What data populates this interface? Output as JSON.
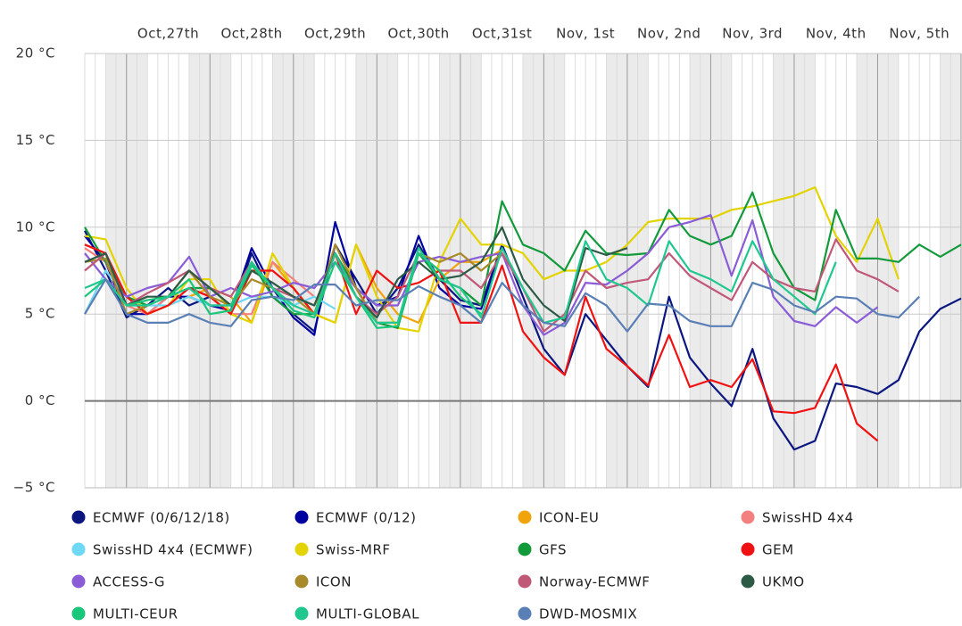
{
  "chart_data": {
    "type": "line",
    "categories": [
      null,
      null,
      null,
      null,
      "Oct,27th",
      null,
      null,
      null,
      "Oct,28th",
      null,
      null,
      null,
      "Oct,29th",
      null,
      null,
      null,
      "Oct,30th",
      null,
      null,
      null,
      "Oct,31st",
      null,
      null,
      null,
      "Nov, 1st",
      null,
      null,
      null,
      "Nov, 2nd",
      null,
      null,
      null,
      "Nov, 3rd",
      null,
      null,
      null,
      "Nov, 4th",
      null,
      null,
      null,
      "Nov, 5th",
      null,
      null
    ],
    "ylim": [
      -5,
      20
    ],
    "yticks": [
      {
        "value": -5,
        "label": "−5 °C"
      },
      {
        "value": 0,
        "label": "0 °C"
      },
      {
        "value": 5,
        "label": "5 °C"
      },
      {
        "value": 10,
        "label": "10 °C"
      },
      {
        "value": 15,
        "label": "15 °C"
      },
      {
        "value": 20,
        "label": "20 °C"
      }
    ],
    "grid": true,
    "series": [
      {
        "name": "ECMWF (0/6/12/18)",
        "color": "#0b1780",
        "values": [
          9.8,
          7.5,
          4.8,
          5.5,
          6.5,
          5.5,
          6,
          5,
          8.5,
          6,
          5,
          4,
          9,
          7,
          5,
          6.5,
          9,
          7,
          5.8,
          5.5,
          9,
          6,
          3,
          1.5,
          5,
          3.5,
          2,
          0.8,
          6,
          2.5,
          1,
          -0.3,
          3,
          -1,
          -2.8,
          -2.3,
          1,
          0.8,
          0.4,
          1.2,
          4,
          5.3,
          5.9
        ]
      },
      {
        "name": "ECMWF (0/12)",
        "color": "#0000a0",
        "values": [
          9.5,
          8,
          5,
          5,
          6,
          6,
          5.5,
          5.2,
          8.8,
          6.5,
          4.8,
          3.8,
          10.3,
          6.5,
          5.5,
          6,
          9.5,
          6.5,
          5.5,
          5.3,
          8.8,
          null,
          null,
          null,
          null,
          null,
          null,
          null,
          null,
          null,
          null,
          null,
          null,
          null,
          null,
          null,
          null,
          null,
          null,
          null,
          null,
          null,
          null
        ]
      },
      {
        "name": "ICON-EU",
        "color": "#f0a30a",
        "values": [
          9,
          8.5,
          6,
          5,
          5.5,
          6,
          6.5,
          6,
          4.5,
          8,
          6.5,
          5,
          4.5,
          9,
          6.5,
          5,
          4.5,
          7,
          8,
          8,
          8.7,
          null,
          null,
          null,
          null,
          null,
          null,
          null,
          null,
          null,
          null,
          null,
          null,
          null,
          null,
          null,
          null,
          null,
          null,
          null,
          null,
          null,
          null
        ]
      },
      {
        "name": "SwissHD 4x4",
        "color": "#f47f7f",
        "values": [
          8.8,
          8,
          5.5,
          5,
          6,
          6.5,
          6,
          5,
          5,
          8,
          7,
          6,
          null,
          null,
          null,
          null,
          null,
          null,
          null,
          null,
          null,
          null,
          null,
          null,
          null,
          null,
          null,
          null,
          null,
          null,
          null,
          null,
          null,
          null,
          null,
          null,
          null,
          null,
          null,
          null,
          null,
          null,
          null
        ]
      },
      {
        "name": "SwissHD 4x4 (ECMWF)",
        "color": "#6fd8f5",
        "values": [
          5,
          7.5,
          6,
          5.5,
          5.5,
          6,
          5.5,
          5.5,
          6,
          6,
          5.5,
          6,
          5.3,
          null,
          null,
          null,
          null,
          null,
          null,
          null,
          null,
          null,
          null,
          null,
          null,
          null,
          null,
          null,
          null,
          null,
          null,
          null,
          null,
          null,
          null,
          null,
          null,
          null,
          null,
          null,
          null,
          null,
          null
        ]
      },
      {
        "name": "Swiss-MRF",
        "color": "#e3d300",
        "values": [
          9.5,
          9.3,
          6.5,
          5,
          5.5,
          7,
          7,
          5,
          4.5,
          8.5,
          6.5,
          5,
          4.5,
          9,
          6,
          4.2,
          4,
          8,
          10.5,
          9,
          9,
          8.5,
          7,
          7.5,
          7.5,
          8,
          9,
          10.3,
          10.5,
          10.5,
          10.5,
          11,
          11.2,
          11.5,
          11.8,
          12.3,
          9.5,
          8,
          10.5,
          7,
          null,
          null,
          null
        ]
      },
      {
        "name": "GFS",
        "color": "#139a3b",
        "values": [
          10,
          8,
          6,
          5.5,
          6,
          6.5,
          6.5,
          5.5,
          8,
          6,
          5,
          5,
          8.5,
          6.5,
          4.5,
          4.2,
          8.5,
          7,
          6.5,
          5.5,
          11.5,
          9,
          8.5,
          7.5,
          9.8,
          8.5,
          8.4,
          8.5,
          11,
          9.5,
          9,
          9.5,
          12,
          8.5,
          6.5,
          5.8,
          11,
          8.2,
          8.2,
          8,
          9,
          8.3,
          9
        ]
      },
      {
        "name": "GEM",
        "color": "#f01212",
        "values": [
          9,
          8.5,
          6,
          5,
          5.5,
          6.5,
          6,
          5,
          7.5,
          7.5,
          6.5,
          5,
          8.5,
          5,
          7.5,
          6.5,
          6.8,
          7.5,
          4.5,
          4.5,
          7.8,
          4,
          2.5,
          1.5,
          6,
          3,
          2,
          0.9,
          3.8,
          0.8,
          1.2,
          0.8,
          2.4,
          -0.6,
          -0.7,
          -0.4,
          2.1,
          -1.3,
          -2.3,
          null,
          null,
          null,
          null
        ]
      },
      {
        "name": "ACCESS-G",
        "color": "#8a5cd6",
        "values": [
          8.5,
          7,
          6,
          6.5,
          6.8,
          8.3,
          6,
          6.5,
          6,
          6.3,
          6.8,
          6.5,
          8,
          6.5,
          5.5,
          5.5,
          8,
          8.3,
          8,
          8.3,
          8.5,
          5.5,
          3.8,
          4.5,
          6.8,
          6.7,
          7.5,
          8.5,
          10,
          10.3,
          10.7,
          7.2,
          10.4,
          6,
          4.6,
          4.3,
          5.4,
          4.5,
          5.4,
          null,
          null,
          null,
          null
        ]
      },
      {
        "name": "ICON",
        "color": "#a88a2a",
        "values": [
          8,
          8.2,
          5,
          5.5,
          6,
          7.5,
          6,
          5.5,
          7,
          6.5,
          6,
          5,
          9,
          6.5,
          4.5,
          4.5,
          8.5,
          8,
          8.5,
          7.5,
          8.5,
          null,
          null,
          null,
          null,
          null,
          null,
          null,
          null,
          null,
          null,
          null,
          null,
          null,
          null,
          null,
          null,
          null,
          null,
          null,
          null,
          null,
          null
        ]
      },
      {
        "name": "Norway-ECMWF",
        "color": "#c05878",
        "values": [
          7.5,
          8.5,
          5.5,
          6.2,
          6.8,
          7.5,
          6.5,
          6,
          8,
          6.5,
          6,
          5.5,
          8.5,
          6,
          5,
          6,
          8.5,
          7.5,
          7.5,
          6.5,
          8.5,
          6.5,
          4,
          5,
          7.5,
          6.5,
          6.8,
          7,
          8.5,
          7.2,
          6.5,
          5.8,
          8,
          7,
          6.5,
          6.3,
          9.3,
          7.5,
          7,
          6.3,
          null,
          null,
          null
        ]
      },
      {
        "name": "UKMO",
        "color": "#2d5a45",
        "values": [
          8,
          8.5,
          5.5,
          6,
          6,
          7.5,
          6.5,
          5.5,
          7.5,
          6.8,
          6,
          5.5,
          8.5,
          6,
          4.8,
          7,
          8,
          7,
          7.2,
          8,
          10,
          7,
          5.5,
          4.6,
          8.8,
          8.4,
          8.8,
          null,
          null,
          null,
          null,
          null,
          null,
          null,
          null,
          null,
          null,
          null,
          null,
          null,
          null,
          null,
          null
        ]
      },
      {
        "name": "MULTI-CEUR",
        "color": "#19c77a",
        "values": [
          6,
          7,
          5.5,
          5.8,
          6,
          7,
          5,
          5.2,
          7.8,
          6.5,
          5.2,
          4.8,
          8,
          6,
          4.2,
          4.3,
          8.5,
          7.5,
          6,
          5,
          null,
          null,
          null,
          null,
          null,
          null,
          null,
          null,
          null,
          null,
          null,
          null,
          null,
          null,
          null,
          null,
          null,
          null,
          null,
          null,
          null,
          null,
          null
        ]
      },
      {
        "name": "MULTI-GLOBAL",
        "color": "#20c890",
        "values": [
          6.5,
          7,
          5.5,
          5.5,
          6,
          6.5,
          5.5,
          5.5,
          8,
          6.5,
          5.5,
          5,
          8.5,
          6,
          4.5,
          4.5,
          8.8,
          7,
          6.5,
          4.8,
          8.8,
          6.5,
          4.5,
          4.8,
          9.2,
          7,
          6.5,
          5.5,
          9.2,
          7.5,
          7,
          6.3,
          9.2,
          7,
          6,
          5,
          8,
          null,
          null,
          null,
          null,
          null,
          null
        ]
      },
      {
        "name": "DWD-MOSMIX",
        "color": "#5a7fb5",
        "values": [
          5,
          7,
          5,
          4.5,
          4.5,
          5,
          4.5,
          4.3,
          5.8,
          6,
          5.8,
          6.7,
          6.7,
          5.5,
          5.8,
          5.8,
          6.6,
          6,
          5.5,
          4.5,
          6.8,
          5.5,
          4.5,
          4.3,
          6.2,
          5.5,
          4,
          5.6,
          5.5,
          4.6,
          4.3,
          4.3,
          6.8,
          6.4,
          5.5,
          5.1,
          6,
          5.9,
          5,
          4.8,
          6,
          null,
          null
        ]
      }
    ]
  }
}
